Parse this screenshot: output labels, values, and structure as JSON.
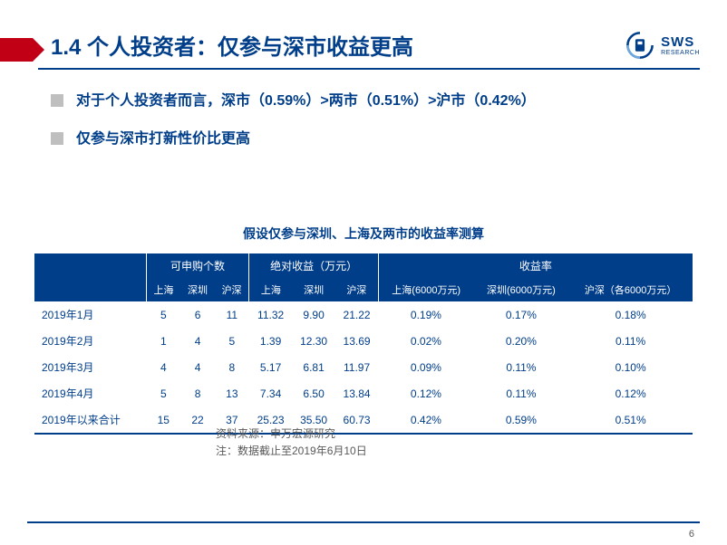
{
  "header": {
    "title": "1.4 个人投资者：仅参与深市收益更高",
    "logo_main": "SWS",
    "logo_sub": "RESEARCH"
  },
  "bullets": [
    "对于个人投资者而言，深市（0.59%）>两市（0.51%）>沪市（0.42%）",
    "仅参与深市打新性价比更高"
  ],
  "table_title": "假设仅参与深圳、上海及两市的收益率测算",
  "table": {
    "group_headers": {
      "blank": "",
      "g1": "可申购个数",
      "g2": "绝对收益（万元）",
      "g3": "收益率"
    },
    "sub_headers": [
      "上海",
      "深圳",
      "沪深",
      "上海",
      "深圳",
      "沪深",
      "上海(6000万元)",
      "深圳(6000万元)",
      "沪深（各6000万元）"
    ],
    "rows": [
      {
        "label": "2019年1月",
        "c": [
          "5",
          "6",
          "11",
          "11.32",
          "9.90",
          "21.22",
          "0.19%",
          "0.17%",
          "0.18%"
        ]
      },
      {
        "label": "2019年2月",
        "c": [
          "1",
          "4",
          "5",
          "1.39",
          "12.30",
          "13.69",
          "0.02%",
          "0.20%",
          "0.11%"
        ]
      },
      {
        "label": "2019年3月",
        "c": [
          "4",
          "4",
          "8",
          "5.17",
          "6.81",
          "11.97",
          "0.09%",
          "0.11%",
          "0.10%"
        ]
      },
      {
        "label": "2019年4月",
        "c": [
          "5",
          "8",
          "13",
          "7.34",
          "6.50",
          "13.84",
          "0.12%",
          "0.11%",
          "0.12%"
        ]
      },
      {
        "label": "2019年以来合计",
        "c": [
          "15",
          "22",
          "37",
          "25.23",
          "35.50",
          "60.73",
          "0.42%",
          "0.59%",
          "0.51%"
        ]
      }
    ]
  },
  "source": {
    "line1": "资料来源：申万宏源研究",
    "line2": "注：数据截止至2019年6月10日"
  },
  "page": "6",
  "colors": {
    "brand": "#003e8a",
    "accent": "#c10016",
    "bullet": "#bfbfbf",
    "text_muted": "#595959"
  }
}
